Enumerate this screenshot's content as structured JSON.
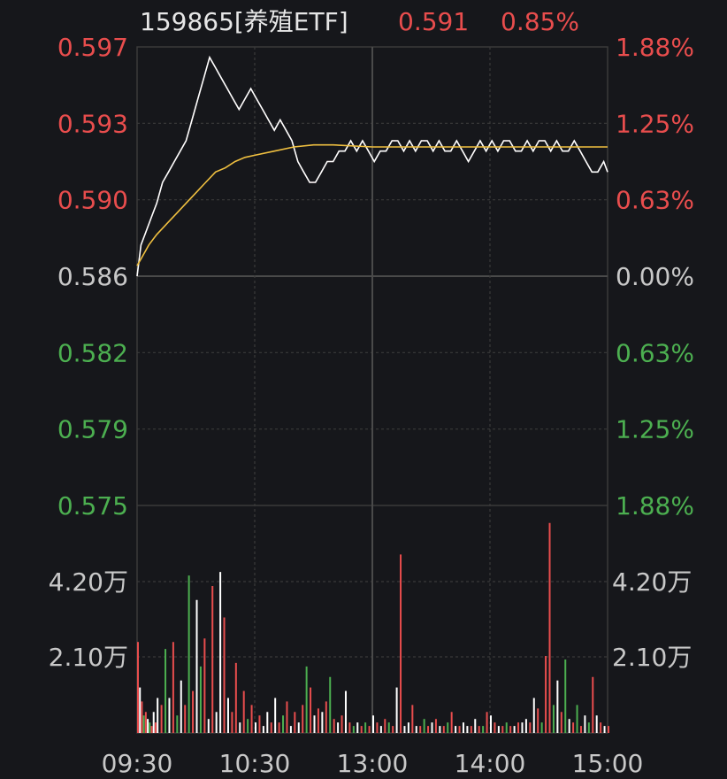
{
  "header": {
    "security": "159865[养殖ETF]",
    "price": "0.591",
    "change_pct": "0.85%"
  },
  "colors": {
    "background": "#16171b",
    "up": "#e84d4d",
    "down": "#4caf50",
    "neutral": "#c8c8c8",
    "price_line": "#ffffff",
    "avg_line": "#f0c040",
    "grid": "#3a3a3a"
  },
  "chart_data": {
    "type": "line",
    "subtype": "intraday-timeshare",
    "prev_close": 0.586,
    "price_axis": {
      "ylim": [
        0.575,
        0.597
      ],
      "tick_labels": [
        "0.597",
        "0.593",
        "0.590",
        "0.586",
        "0.582",
        "0.579",
        "0.575"
      ],
      "tick_colors": [
        "up",
        "up",
        "up",
        "neutral",
        "down",
        "down",
        "down"
      ]
    },
    "pct_axis": {
      "tick_labels": [
        "1.88%",
        "1.25%",
        "0.63%",
        "0.00%",
        "0.63%",
        "1.25%",
        "1.88%"
      ],
      "tick_colors": [
        "up",
        "up",
        "up",
        "neutral",
        "down",
        "down",
        "down"
      ]
    },
    "x_axis": {
      "tick_labels": [
        "09:30",
        "10:30",
        "13:00",
        "14:00",
        "15:00"
      ],
      "range_minutes": [
        0,
        240
      ]
    },
    "series": [
      {
        "role": "price",
        "x": [
          0,
          2,
          4,
          6,
          8,
          10,
          13,
          16,
          19,
          22,
          25,
          28,
          31,
          34,
          37,
          40,
          43,
          46,
          49,
          52,
          55,
          58,
          61,
          64,
          67,
          70,
          73,
          76,
          79,
          82,
          85,
          88,
          91,
          94,
          97,
          100,
          103,
          106,
          109,
          112,
          115,
          118,
          121,
          124,
          127,
          130,
          133,
          136,
          139,
          142,
          145,
          148,
          151,
          154,
          157,
          160,
          163,
          166,
          169,
          172,
          175,
          178,
          181,
          184,
          187,
          190,
          193,
          196,
          199,
          202,
          205,
          208,
          211,
          214,
          217,
          220,
          223,
          226,
          229,
          232,
          235,
          238,
          240
        ],
        "values": [
          0.586,
          0.5875,
          0.588,
          0.5885,
          0.589,
          0.5895,
          0.5905,
          0.591,
          0.5915,
          0.592,
          0.5925,
          0.5935,
          0.5945,
          0.5955,
          0.5965,
          0.596,
          0.5955,
          0.595,
          0.5945,
          0.594,
          0.5945,
          0.595,
          0.5945,
          0.594,
          0.5935,
          0.593,
          0.5935,
          0.593,
          0.5925,
          0.5915,
          0.591,
          0.5905,
          0.5905,
          0.591,
          0.5915,
          0.5915,
          0.592,
          0.592,
          0.5925,
          0.592,
          0.5925,
          0.592,
          0.5915,
          0.592,
          0.592,
          0.5925,
          0.5925,
          0.592,
          0.5925,
          0.592,
          0.5925,
          0.5925,
          0.592,
          0.5925,
          0.592,
          0.592,
          0.5925,
          0.592,
          0.5915,
          0.592,
          0.5925,
          0.592,
          0.5925,
          0.592,
          0.5925,
          0.5925,
          0.592,
          0.592,
          0.5925,
          0.592,
          0.5925,
          0.5925,
          0.592,
          0.5925,
          0.592,
          0.592,
          0.5925,
          0.592,
          0.5915,
          0.591,
          0.591,
          0.5915,
          0.591
        ]
      },
      {
        "role": "average",
        "x": [
          0,
          3,
          6,
          10,
          15,
          20,
          25,
          30,
          35,
          40,
          45,
          50,
          55,
          60,
          70,
          80,
          90,
          100,
          120,
          140,
          160,
          180,
          200,
          220,
          240
        ],
        "values": [
          0.5865,
          0.587,
          0.5875,
          0.588,
          0.5885,
          0.589,
          0.5895,
          0.59,
          0.5905,
          0.591,
          0.5912,
          0.5915,
          0.5917,
          0.5918,
          0.592,
          0.5922,
          0.5923,
          0.5923,
          0.5922,
          0.5922,
          0.5922,
          0.5922,
          0.5922,
          0.5922,
          0.5922
        ]
      }
    ],
    "volume": {
      "tick_labels": [
        "4.20万",
        "2.10万"
      ],
      "ylim_wan": [
        0,
        6.5
      ],
      "x": [
        0,
        1,
        2,
        3,
        4,
        5,
        6,
        7,
        8,
        9,
        10,
        12,
        14,
        16,
        18,
        20,
        22,
        24,
        26,
        28,
        30,
        32,
        34,
        36,
        38,
        40,
        42,
        44,
        46,
        48,
        50,
        52,
        54,
        56,
        58,
        60,
        62,
        64,
        66,
        68,
        70,
        72,
        74,
        76,
        78,
        80,
        82,
        84,
        86,
        88,
        90,
        92,
        94,
        96,
        98,
        100,
        102,
        104,
        106,
        108,
        110,
        112,
        114,
        116,
        118,
        120,
        122,
        124,
        126,
        128,
        130,
        132,
        134,
        136,
        138,
        140,
        142,
        144,
        146,
        148,
        150,
        152,
        154,
        156,
        158,
        160,
        162,
        164,
        166,
        168,
        170,
        172,
        174,
        176,
        178,
        180,
        182,
        184,
        186,
        188,
        190,
        192,
        194,
        196,
        198,
        200,
        202,
        204,
        206,
        208,
        210,
        212,
        214,
        216,
        218,
        220,
        222,
        224,
        226,
        228,
        230,
        232,
        234,
        236,
        238,
        240
      ],
      "values_wan": [
        2.6,
        1.3,
        0.9,
        0.5,
        0.6,
        0.4,
        0.3,
        0.2,
        0.6,
        0.3,
        1.0,
        0.8,
        2.4,
        1.0,
        2.6,
        0.5,
        1.5,
        0.8,
        4.5,
        1.2,
        3.8,
        1.9,
        2.7,
        0.4,
        4.2,
        0.6,
        4.6,
        3.3,
        1.0,
        0.6,
        2.0,
        0.3,
        1.2,
        0.4,
        0.8,
        0.3,
        0.5,
        0.2,
        0.6,
        0.3,
        1.0,
        0.3,
        0.5,
        0.9,
        0.2,
        0.6,
        0.3,
        0.8,
        1.9,
        1.3,
        0.5,
        0.7,
        0.6,
        0.9,
        1.6,
        0.4,
        0.3,
        0.5,
        1.2,
        0.3,
        0.2,
        0.3,
        0.2,
        0.3,
        0.2,
        0.5,
        0.3,
        0.2,
        0.4,
        0.3,
        0.2,
        1.3,
        5.1,
        0.2,
        0.3,
        0.8,
        0.2,
        0.2,
        0.4,
        0.2,
        0.3,
        0.4,
        0.2,
        0.2,
        0.3,
        0.6,
        0.2,
        0.2,
        0.3,
        0.2,
        0.2,
        0.4,
        0.2,
        0.2,
        0.6,
        0.5,
        0.3,
        0.2,
        0.2,
        0.3,
        0.2,
        0.2,
        0.3,
        0.3,
        0.4,
        0.3,
        1.0,
        0.7,
        0.3,
        2.2,
        6.0,
        0.8,
        1.5,
        0.6,
        2.1,
        0.4,
        0.3,
        0.8,
        0.2,
        0.5,
        0.3,
        1.6,
        0.5,
        0.3,
        0.2,
        0.2
      ],
      "up": [
        1,
        0,
        1,
        0,
        1,
        0,
        0,
        1,
        0,
        1,
        0,
        1,
        0,
        0,
        1,
        0,
        0,
        1,
        0,
        1,
        0,
        0,
        1,
        0,
        1,
        0,
        0,
        1,
        0,
        1,
        1,
        0,
        1,
        0,
        1,
        0,
        1,
        0,
        0,
        1,
        0,
        1,
        0,
        1,
        0,
        1,
        0,
        1,
        0,
        1,
        0,
        1,
        0,
        1,
        0,
        1,
        0,
        1,
        0,
        1,
        0,
        0,
        1,
        0,
        1,
        0,
        1,
        0,
        1,
        0,
        1,
        0,
        1,
        0,
        0,
        1,
        0,
        1,
        0,
        1,
        0,
        1,
        0,
        1,
        0,
        1,
        0,
        1,
        0,
        0,
        1,
        0,
        1,
        0,
        1,
        0,
        1,
        0,
        1,
        0,
        1,
        0,
        1,
        0,
        0,
        1,
        0,
        1,
        0,
        1,
        1,
        0,
        0,
        1,
        0,
        0,
        1,
        0,
        1,
        0,
        0,
        1,
        0,
        1,
        0,
        1
      ]
    }
  }
}
